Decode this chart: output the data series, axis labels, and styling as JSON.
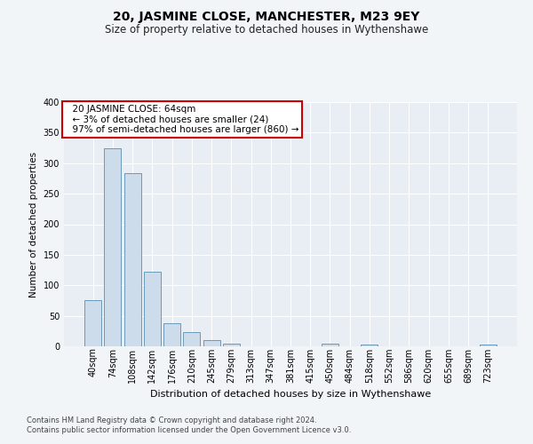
{
  "title": "20, JASMINE CLOSE, MANCHESTER, M23 9EY",
  "subtitle": "Size of property relative to detached houses in Wythenshawe",
  "xlabel": "Distribution of detached houses by size in Wythenshawe",
  "ylabel": "Number of detached properties",
  "footer_line1": "Contains HM Land Registry data © Crown copyright and database right 2024.",
  "footer_line2": "Contains public sector information licensed under the Open Government Licence v3.0.",
  "categories": [
    "40sqm",
    "74sqm",
    "108sqm",
    "142sqm",
    "176sqm",
    "210sqm",
    "245sqm",
    "279sqm",
    "313sqm",
    "347sqm",
    "381sqm",
    "415sqm",
    "450sqm",
    "484sqm",
    "518sqm",
    "552sqm",
    "586sqm",
    "620sqm",
    "655sqm",
    "689sqm",
    "723sqm"
  ],
  "values": [
    75,
    325,
    283,
    122,
    38,
    24,
    10,
    4,
    0,
    0,
    0,
    0,
    5,
    0,
    3,
    0,
    0,
    0,
    0,
    0,
    3
  ],
  "bar_color": "#cddceb",
  "bar_edge_color": "#5b8db0",
  "annotation_box_color": "#ffffff",
  "annotation_box_edge": "#cc0000",
  "annotation_line1": "20 JASMINE CLOSE: 64sqm",
  "annotation_line2": "← 3% of detached houses are smaller (24)",
  "annotation_line3": "97% of semi-detached houses are larger (860) →",
  "ylim_max": 400,
  "ytick_interval": 50,
  "background_color": "#f2f5f8",
  "plot_bg_color": "#e8eef4",
  "title_fontsize": 10,
  "subtitle_fontsize": 8.5,
  "ylabel_fontsize": 7.5,
  "xlabel_fontsize": 8,
  "tick_fontsize": 7,
  "footer_fontsize": 6,
  "ann_fontsize": 7.5
}
